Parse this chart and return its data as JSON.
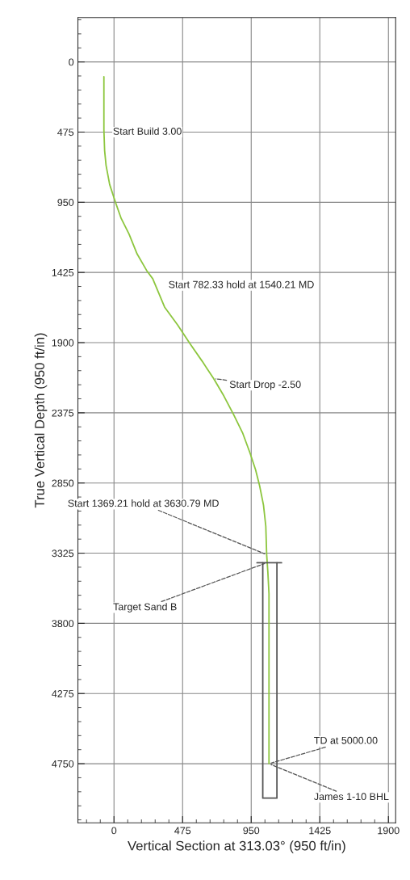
{
  "chart_data": {
    "type": "line",
    "xlabel": "Vertical Section at 313.03° (950 ft/in)",
    "ylabel": "True Vertical Depth (950 ft/in)",
    "xlim": [
      -250,
      1950
    ],
    "ylim": [
      5150,
      -300
    ],
    "xticks": [
      0,
      475,
      950,
      1425,
      1900
    ],
    "yticks": [
      0,
      475,
      950,
      1425,
      1900,
      2375,
      2850,
      3325,
      3800,
      4275,
      4750
    ],
    "grid": true,
    "legend": false,
    "series": [
      {
        "color": "#8dc63f",
        "x": [
          -70,
          -70,
          -65,
          -55,
          -30,
          10,
          50,
          104,
          160,
          225,
          268,
          350,
          440,
          525,
          610,
          690,
          760,
          827,
          890,
          942,
          980,
          1008,
          1035,
          1051,
          1057,
          1065,
          1073,
          1073
        ],
        "values": [
          100,
          460,
          600,
          700,
          830,
          950,
          1060,
          1165,
          1300,
          1410,
          1467,
          1659,
          1780,
          1906,
          2025,
          2143,
          2260,
          2385,
          2510,
          2648,
          2760,
          2868,
          3000,
          3143,
          3335,
          3450,
          3600,
          4750
        ]
      },
      {
        "color": "#555555",
        "x": [
          990,
          1160
        ],
        "values": [
          3390,
          3390
        ]
      },
      {
        "color": "#555555",
        "x": [
          1030,
          1030,
          1128,
          1128
        ],
        "values": [
          3390,
          4983,
          4983,
          3390
        ]
      }
    ],
    "annotations": [
      {
        "text": "Start Build 3.00",
        "x": -70,
        "y": 460
      },
      {
        "text": "Start 782.33 hold at 1540.21 MD",
        "x": 268,
        "y": 1467
      },
      {
        "text": "Start Drop -2.50",
        "x": 690,
        "y": 2143
      },
      {
        "text": "Start 1369.21 hold at 3630.79 MD",
        "x": 1057,
        "y": 3335
      },
      {
        "text": "Target Sand B",
        "x": 1057,
        "y": 3390
      },
      {
        "text": "TD at 5000.00",
        "x": 1073,
        "y": 4750
      },
      {
        "text": "James 1-10 BHL",
        "x": 1073,
        "y": 4750
      }
    ]
  }
}
